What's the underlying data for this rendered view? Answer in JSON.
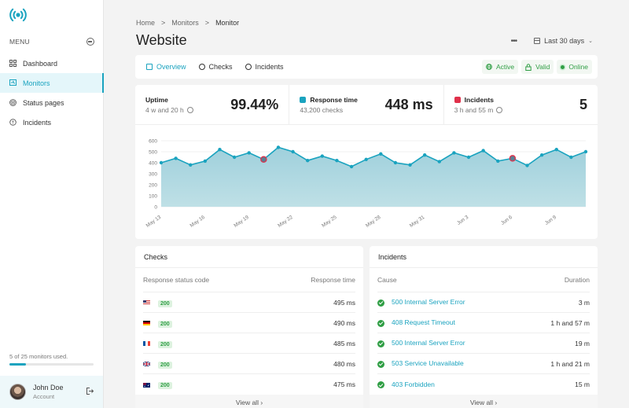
{
  "sidebar": {
    "menu_label": "MENU",
    "items": [
      {
        "label": "Dashboard",
        "icon": "grid-icon",
        "active": false
      },
      {
        "label": "Monitors",
        "icon": "monitor-icon",
        "active": true
      },
      {
        "label": "Status pages",
        "icon": "broadcast-icon",
        "active": false
      },
      {
        "label": "Incidents",
        "icon": "alert-circle-icon",
        "active": false
      }
    ],
    "usage_text": "5 of 25 monitors used.",
    "usage_percent": 20,
    "user": {
      "name": "John Doe",
      "subtitle": "Account"
    }
  },
  "breadcrumb": {
    "items": [
      "Home",
      "Monitors",
      "Monitor"
    ],
    "separator": ">"
  },
  "page_title": "Website",
  "top_actions": {
    "more_label": "•••",
    "date_range": "Last 30 days"
  },
  "tabs": [
    {
      "label": "Overview",
      "active": true
    },
    {
      "label": "Checks",
      "active": false
    },
    {
      "label": "Incidents",
      "active": false
    }
  ],
  "status_badges": [
    {
      "label": "Active",
      "icon": "globe-icon"
    },
    {
      "label": "Valid",
      "icon": "lock-icon"
    },
    {
      "label": "Online",
      "icon": "online-dot-icon"
    }
  ],
  "stats": {
    "uptime": {
      "label": "Uptime",
      "sub": "4 w and 20 h",
      "value": "99.44%"
    },
    "response": {
      "label": "Response time",
      "sub": "43,200 checks",
      "value": "448 ms",
      "color": "#1aa3bf"
    },
    "incidents": {
      "label": "Incidents",
      "sub": "3 h and 55 m",
      "value": "5",
      "color": "#e0314b"
    }
  },
  "chart_data": {
    "type": "area",
    "title": "Response time",
    "x": [
      "May 13",
      "May 14",
      "May 15",
      "May 16",
      "May 17",
      "May 18",
      "May 19",
      "May 20",
      "May 21",
      "May 22",
      "May 23",
      "May 24",
      "May 25",
      "May 26",
      "May 27",
      "May 28",
      "May 29",
      "May 30",
      "May 31",
      "Jun 1",
      "Jun 2",
      "Jun 3",
      "Jun 4",
      "Jun 5",
      "Jun 6",
      "Jun 7",
      "Jun 8",
      "Jun 9",
      "Jun 10",
      "Jun 11"
    ],
    "tick_labels": [
      "May 13",
      "May 16",
      "May 19",
      "May 22",
      "May 25",
      "May 28",
      "May 31",
      "Jun 3",
      "Jun 6",
      "Jun 9"
    ],
    "values": [
      400,
      440,
      380,
      415,
      520,
      450,
      490,
      430,
      540,
      500,
      420,
      460,
      420,
      365,
      430,
      480,
      400,
      380,
      470,
      410,
      490,
      450,
      510,
      415,
      440,
      375,
      470,
      520,
      450,
      500
    ],
    "incident_points": [
      7,
      24
    ],
    "ylim": [
      0,
      600
    ],
    "yticks": [
      0,
      100,
      200,
      300,
      400,
      500,
      600
    ],
    "xlabel": "",
    "ylabel": "",
    "grid": true,
    "line_color": "#1aa3bf",
    "incident_color": "#e0314b"
  },
  "checks": {
    "title": "Checks",
    "headers": [
      "Response status code",
      "Response time"
    ],
    "rows": [
      {
        "flag": "us",
        "code": "200",
        "time": "495 ms"
      },
      {
        "flag": "de",
        "code": "200",
        "time": "490 ms"
      },
      {
        "flag": "fr",
        "code": "200",
        "time": "485 ms"
      },
      {
        "flag": "gb",
        "code": "200",
        "time": "480 ms"
      },
      {
        "flag": "au",
        "code": "200",
        "time": "475 ms"
      }
    ],
    "view_all": "View all  ›"
  },
  "incidents": {
    "title": "Incidents",
    "headers": [
      "Cause",
      "Duration"
    ],
    "rows": [
      {
        "cause": "500 Internal Server Error",
        "duration": "3 m"
      },
      {
        "cause": "408 Request Timeout",
        "duration": "1 h and 57 m"
      },
      {
        "cause": "500 Internal Server Error",
        "duration": "19 m"
      },
      {
        "cause": "503 Service Unavailable",
        "duration": "1 h and 21 m"
      },
      {
        "cause": "403 Forbidden",
        "duration": "15 m"
      }
    ],
    "view_all": "View all  ›"
  }
}
